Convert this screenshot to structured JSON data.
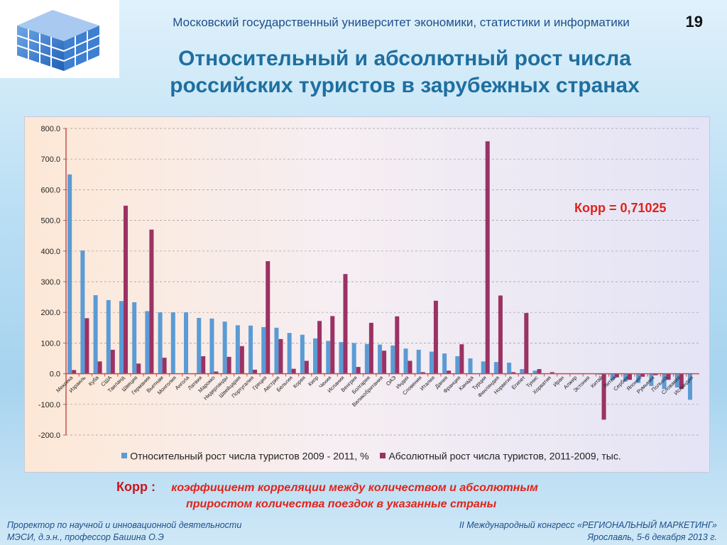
{
  "header": {
    "university": "Московский государственный университет экономики, статистики и информатики",
    "page_number": "19",
    "title_line1": "Относительный и абсолютный рост числа",
    "title_line2": "российских туристов в зарубежных странах"
  },
  "correlation_label": "Корр =  0,71025",
  "footnote": {
    "key": "Корр",
    "colon": " :",
    "desc_line1": "коэффициент корреляции между количеством и абсолютным",
    "desc_line2": "приростом количества поездок в указанные страны"
  },
  "footer": {
    "left_line1": "Проректор по научной и инновационной деятельности",
    "left_line2": "МЭСИ,  д.э.н., профессор Башина О.Э",
    "right_line1": "II Международный конгресс «РЕГИОНАЛЬНЫЙ МАРКЕТИНГ»",
    "right_line2": "Ярославль, 5-6 декабря 2013 г."
  },
  "colors": {
    "series_relative": "#5b9bd5",
    "series_absolute": "#9b3264",
    "accent_red": "#e0231b",
    "title_blue": "#1f6fa0"
  },
  "chart_data": {
    "type": "bar",
    "title": "",
    "xlabel": "",
    "ylabel": "",
    "ylim": [
      -200,
      800
    ],
    "yticks": [
      "800.0",
      "700.0",
      "600.0",
      "500.0",
      "400.0",
      "300.0",
      "200.0",
      "100.0",
      "0.0",
      "-100.0",
      "-200.0"
    ],
    "grid": true,
    "legend_position": "bottom",
    "categories": [
      "Мексика",
      "Израиль",
      "Куба",
      "США",
      "Таиланд",
      "Швеция",
      "Германия",
      "Вьетнам",
      "Монголия",
      "Ангола",
      "Латвия",
      "Марокко",
      "Нидерланды",
      "Швейцария",
      "Португалия",
      "Греция",
      "Австрия",
      "Бельгия",
      "Корея",
      "Кипр",
      "Чехия",
      "Испания",
      "Венгрия",
      "Болгария",
      "Великобритания",
      "ОАЭ",
      "Индия",
      "Словения",
      "Италия",
      "Дания",
      "Франция",
      "Канада",
      "Турция",
      "Финляндия",
      "Норвегия",
      "Египет",
      "Тунис",
      "Хорватия",
      "Иран",
      "Алжир",
      "Эстония",
      "Китай",
      "Литва",
      "Сербия",
      "Япония",
      "Румыния",
      "Польша",
      "Словакия",
      "Исландия"
    ],
    "series": [
      {
        "name": "Относительный рост числа туристов 2009 - 2011, %",
        "values": [
          650,
          402,
          256,
          240,
          237,
          233,
          204,
          200,
          200,
          200,
          182,
          180,
          170,
          158,
          157,
          152,
          150,
          133,
          127,
          115,
          107,
          103,
          100,
          97,
          95,
          92,
          82,
          78,
          72,
          66,
          57,
          50,
          40,
          38,
          36,
          15,
          10,
          0,
          0,
          0,
          0,
          -3,
          -20,
          -25,
          -30,
          -40,
          -50,
          -45,
          -85
        ]
      },
      {
        "name": "Абсолютный рост числа туристов, 2011-2009, тыс.",
        "values": [
          12,
          181,
          40,
          78,
          548,
          33,
          470,
          52,
          0,
          0,
          57,
          7,
          55,
          90,
          13,
          367,
          113,
          16,
          42,
          172,
          188,
          325,
          22,
          166,
          75,
          187,
          42,
          5,
          238,
          10,
          96,
          0,
          758,
          255,
          5,
          198,
          15,
          5,
          0,
          0,
          0,
          -150,
          -12,
          -20,
          -10,
          -5,
          -20,
          -50,
          0
        ]
      }
    ]
  }
}
